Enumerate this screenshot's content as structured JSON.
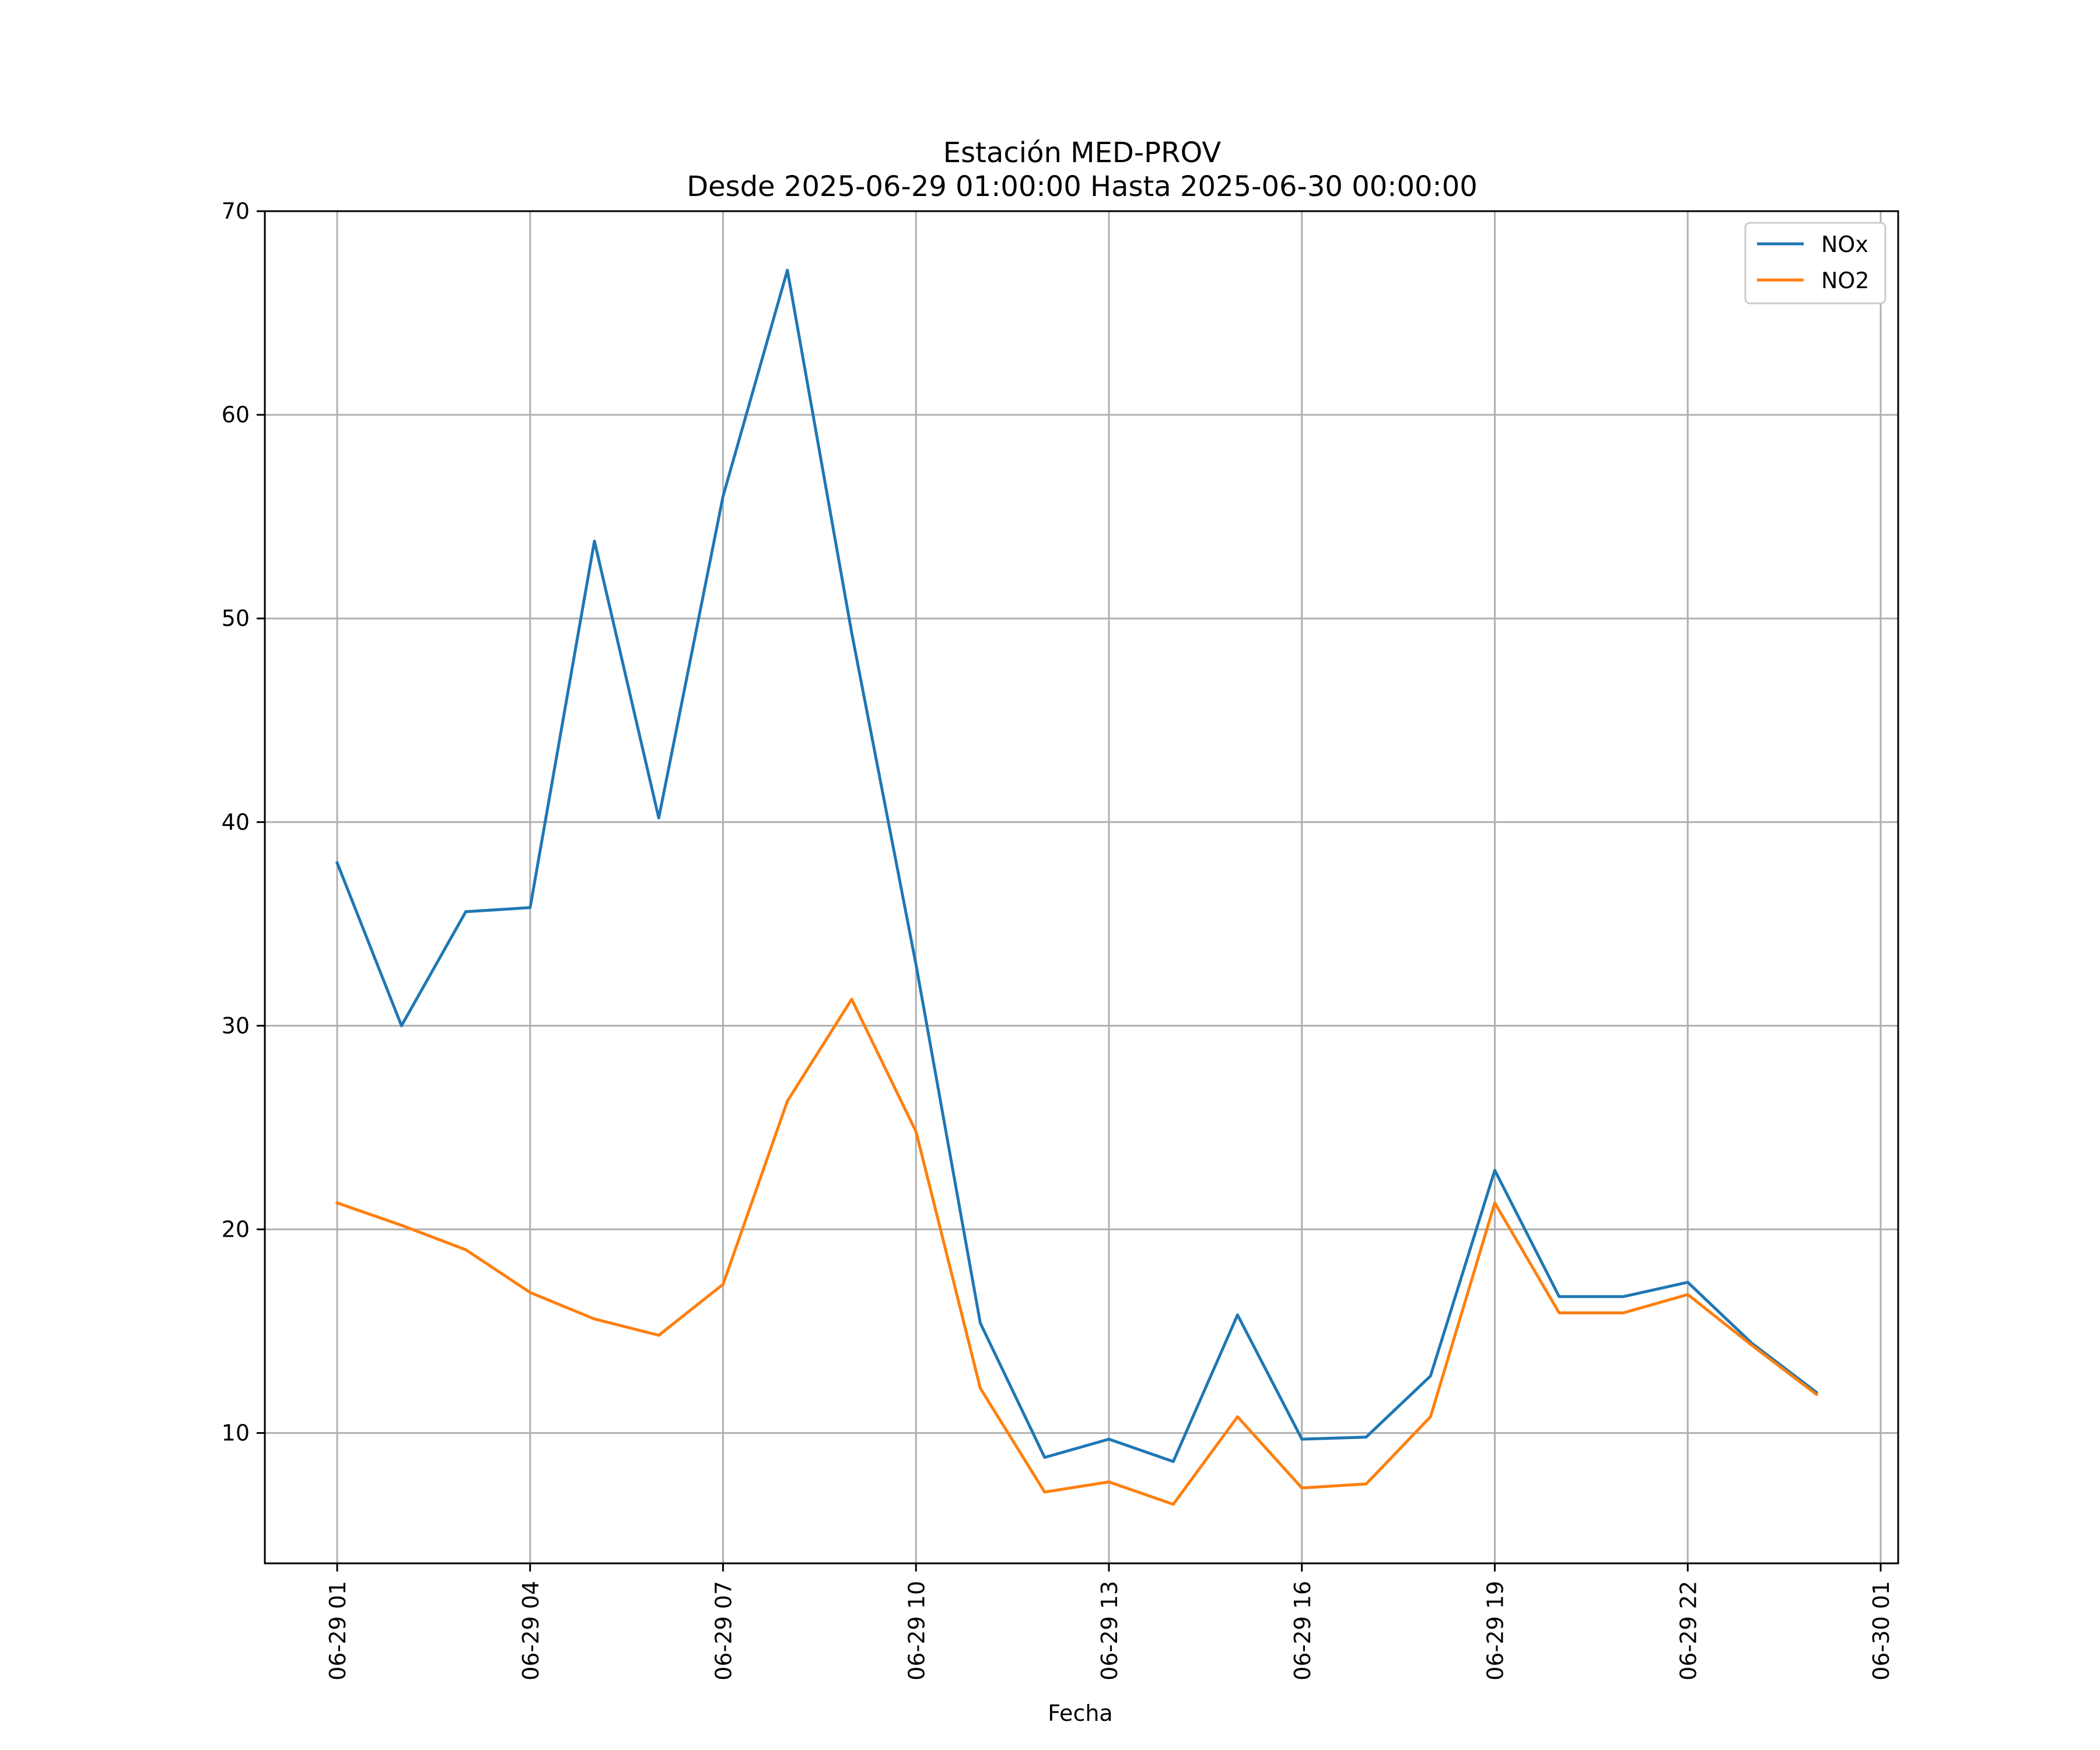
{
  "chart_data": {
    "type": "line",
    "title": "Estación MED-PROV",
    "subtitle": "Desde 2025-06-29 01:00:00 Hasta 2025-06-30 00:00:00",
    "xlabel": "Fecha",
    "ylabel": "",
    "ylim": [
      3.6,
      70
    ],
    "yticks": [
      10,
      20,
      30,
      40,
      50,
      60,
      70
    ],
    "xticks": [
      "06-29 01",
      "06-29 04",
      "06-29 07",
      "06-29 10",
      "06-29 13",
      "06-29 16",
      "06-29 19",
      "06-29 22",
      "06-30 01"
    ],
    "x": [
      "2025-06-29 01:00",
      "2025-06-29 02:00",
      "2025-06-29 03:00",
      "2025-06-29 04:00",
      "2025-06-29 05:00",
      "2025-06-29 06:00",
      "2025-06-29 07:00",
      "2025-06-29 08:00",
      "2025-06-29 09:00",
      "2025-06-29 10:00",
      "2025-06-29 11:00",
      "2025-06-29 12:00",
      "2025-06-29 13:00",
      "2025-06-29 14:00",
      "2025-06-29 15:00",
      "2025-06-29 16:00",
      "2025-06-29 17:00",
      "2025-06-29 18:00",
      "2025-06-29 19:00",
      "2025-06-29 20:00",
      "2025-06-29 21:00",
      "2025-06-29 22:00",
      "2025-06-29 23:00",
      "2025-06-30 00:00"
    ],
    "series": [
      {
        "name": "NOx",
        "color": "#1f77b4",
        "values": [
          38.0,
          30.0,
          35.6,
          35.8,
          53.8,
          40.2,
          56.0,
          67.1,
          49.3,
          33.0,
          15.4,
          8.8,
          9.7,
          8.6,
          15.8,
          9.7,
          9.8,
          12.8,
          22.9,
          16.7,
          16.7,
          17.4,
          14.4,
          12.0
        ]
      },
      {
        "name": "NO2",
        "color": "#ff7f0e",
        "values": [
          21.3,
          20.2,
          19.0,
          16.9,
          15.6,
          14.8,
          17.3,
          26.3,
          31.3,
          24.8,
          12.2,
          7.1,
          7.6,
          6.5,
          10.8,
          7.3,
          7.5,
          10.8,
          21.3,
          15.9,
          15.9,
          16.8,
          14.3,
          11.9
        ]
      }
    ],
    "grid": true,
    "legend": "top-right"
  }
}
